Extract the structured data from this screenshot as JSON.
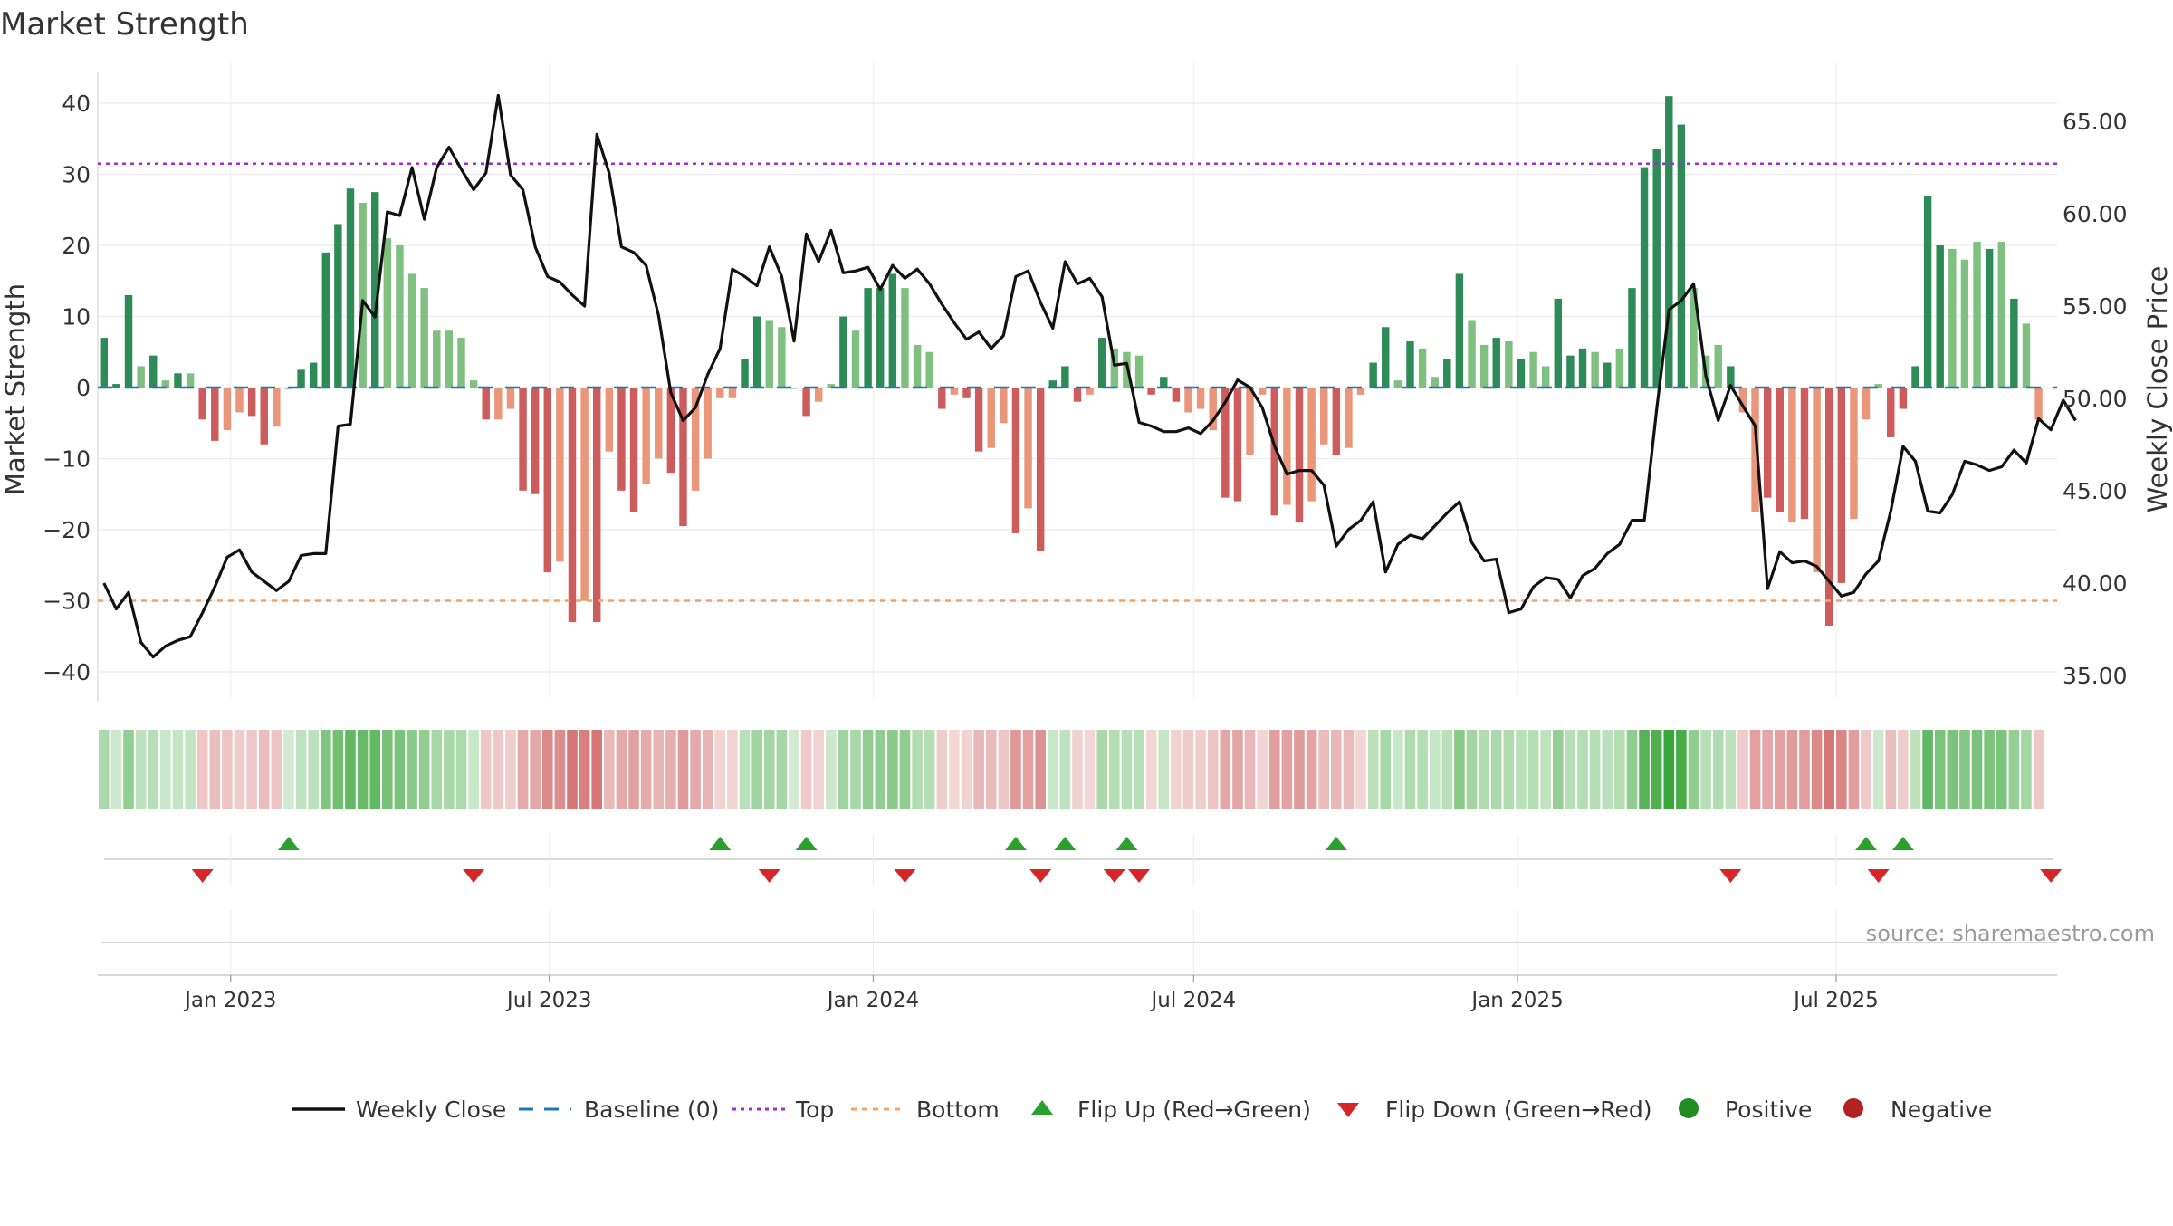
{
  "title": "Market Strength",
  "source": "source: sharemaestro.com",
  "chart_data": {
    "type": "bar",
    "title": "Market Strength",
    "ylabel": "Market Strength",
    "y2label": "Weekly Close Price",
    "ylim": [
      -45,
      42
    ],
    "y2lim": [
      33.5,
      66.5
    ],
    "yticks": [
      -40,
      -30,
      -20,
      -10,
      0,
      10,
      20,
      30,
      40
    ],
    "yticklabels": [
      "−40",
      "−30",
      "−20",
      "−10",
      "0",
      "10",
      "20",
      "30",
      "40"
    ],
    "y2ticks": [
      35,
      40,
      45,
      50,
      55,
      60,
      65
    ],
    "y2ticklabels": [
      "35.00",
      "40.00",
      "45.00",
      "50.00",
      "55.00",
      "60.00",
      "65.00"
    ],
    "xticks": [
      {
        "date": "2023-01-01",
        "label": "Jan 2023"
      },
      {
        "date": "2023-07-01",
        "label": "Jul 2023"
      },
      {
        "date": "2024-01-01",
        "label": "Jan 2024"
      },
      {
        "date": "2024-07-01",
        "label": "Jul 2024"
      },
      {
        "date": "2025-01-01",
        "label": "Jan 2025"
      },
      {
        "date": "2025-07-01",
        "label": "Jul 2025"
      }
    ],
    "x_start": "2022-10-21",
    "weeks": 159,
    "top_line": 31.5,
    "bottom_line": -30,
    "grid": true,
    "legend_position": "bottom",
    "colors": {
      "strong_green": "#2e8b57",
      "light_green": "#7fbf7f",
      "strong_red": "#cd5c5c",
      "light_red": "#e9967a",
      "price_line": "#111111",
      "baseline": "#1f77b4",
      "top": "#9932cc",
      "bottom": "#f4a460",
      "flip_up": "#2ca02c",
      "flip_down": "#d62728",
      "positive": "#228b22",
      "negative": "#b22222"
    },
    "bars": [
      7,
      0.5,
      13,
      3,
      4.5,
      1,
      2,
      2,
      -4.5,
      -7.5,
      -6,
      -3.5,
      -4,
      -8,
      -5.5,
      0,
      2.5,
      3.5,
      19,
      23,
      28,
      26,
      27.5,
      21,
      20,
      16,
      14,
      8,
      8,
      7,
      1,
      -4.5,
      -4.5,
      -3,
      -14.5,
      -15,
      -26,
      -24.5,
      -33,
      -30,
      -33,
      -9,
      -14.5,
      -17.5,
      -13.5,
      -10,
      -12,
      -19.5,
      -14.5,
      -10,
      -1.5,
      -1.5,
      4,
      10,
      9.5,
      8.5,
      0,
      -4,
      -2,
      0.5,
      10,
      8,
      14,
      14,
      16,
      14,
      6,
      5,
      -3,
      -1,
      -1.5,
      -9,
      -8.5,
      -5,
      -20.5,
      -17,
      -23,
      1,
      3,
      -2,
      -1,
      7,
      5.5,
      5,
      4.5,
      -1,
      1.5,
      -2,
      -3.5,
      -3,
      -6,
      -15.5,
      -16,
      -9.5,
      -1,
      -18,
      -16.5,
      -19,
      -16,
      -8,
      -9.5,
      -8.5,
      -1,
      3.5,
      8.5,
      1,
      6.5,
      5.5,
      1.5,
      4,
      16,
      9.5,
      6,
      7,
      6.5,
      4,
      5,
      3,
      12.5,
      4.5,
      5.5,
      5,
      3.5,
      5.5,
      14,
      31,
      33.5,
      41,
      37,
      14,
      4.5,
      6,
      3,
      -3.5,
      -17.5,
      -15.5,
      -17.5,
      -19,
      -18.5,
      -26,
      -33.5,
      -27.5,
      -18.5,
      -4.5,
      0.5,
      -7,
      -3,
      3,
      27,
      20,
      19.5,
      18,
      20.5,
      19.5,
      20.5,
      12.5,
      9,
      -4.5
    ],
    "bar_strength": [
      "s",
      "s",
      "s",
      "l",
      "s",
      "l",
      "s",
      "l",
      "s",
      "s",
      "l",
      "l",
      "s",
      "s",
      "l",
      "s",
      "s",
      "s",
      "s",
      "s",
      "s",
      "l",
      "s",
      "l",
      "l",
      "l",
      "l",
      "l",
      "l",
      "l",
      "l",
      "s",
      "l",
      "l",
      "s",
      "s",
      "s",
      "l",
      "s",
      "l",
      "s",
      "l",
      "s",
      "s",
      "l",
      "l",
      "s",
      "s",
      "l",
      "l",
      "l",
      "l",
      "s",
      "s",
      "l",
      "l",
      "l",
      "s",
      "l",
      "l",
      "s",
      "l",
      "s",
      "s",
      "s",
      "l",
      "l",
      "l",
      "s",
      "l",
      "s",
      "s",
      "l",
      "l",
      "s",
      "l",
      "s",
      "s",
      "s",
      "s",
      "l",
      "s",
      "l",
      "l",
      "l",
      "s",
      "s",
      "s",
      "l",
      "l",
      "l",
      "s",
      "s",
      "l",
      "l",
      "s",
      "l",
      "s",
      "l",
      "l",
      "s",
      "l",
      "l",
      "s",
      "s",
      "l",
      "s",
      "l",
      "l",
      "s",
      "s",
      "l",
      "l",
      "s",
      "l",
      "s",
      "l",
      "l",
      "s",
      "s",
      "s",
      "l",
      "s",
      "l",
      "s",
      "s",
      "s",
      "s",
      "s",
      "l",
      "l",
      "l",
      "s",
      "l",
      "l",
      "s",
      "s",
      "l",
      "s",
      "l",
      "s",
      "s",
      "l",
      "l",
      "l",
      "s",
      "s",
      "s",
      "s",
      "s",
      "l",
      "l",
      "l",
      "s",
      "l",
      "s",
      "l",
      "l",
      "s"
    ],
    "price": [
      40,
      38.6,
      39.5,
      36.8,
      36,
      36.6,
      36.9,
      37.1,
      38.4,
      39.8,
      41.4,
      41.8,
      40.6,
      40.1,
      39.6,
      40.1,
      41.5,
      41.6,
      41.6,
      48.5,
      48.6,
      55.3,
      54.4,
      60.1,
      59.9,
      62.5,
      59.7,
      62.5,
      63.6,
      62.4,
      61.3,
      62.2,
      66.4,
      62.1,
      61.3,
      58.2,
      56.6,
      56.3,
      55.6,
      55,
      64.3,
      62.2,
      58.2,
      57.9,
      57.2,
      54.5,
      50.3,
      48.8,
      49.5,
      51.3,
      52.7,
      57,
      56.6,
      56.1,
      58.2,
      56.6,
      53.1,
      58.9,
      57.4,
      59.1,
      56.8,
      56.9,
      57.1,
      55.9,
      57.2,
      56.5,
      57,
      56.2,
      55.1,
      54.1,
      53.2,
      53.6,
      52.7,
      53.4,
      56.6,
      56.9,
      55.2,
      53.8,
      57.4,
      56.2,
      56.5,
      55.5,
      51.8,
      51.9,
      48.7,
      48.5,
      48.2,
      48.2,
      48.4,
      48.1,
      48.8,
      49.8,
      51,
      50.6,
      49.5,
      47.4,
      45.9,
      46.1,
      46.1,
      45.3,
      42,
      42.9,
      43.4,
      44.4,
      40.6,
      42.1,
      42.6,
      42.4,
      43.1,
      43.8,
      44.4,
      42.2,
      41.2,
      41.3,
      38.4,
      38.6,
      39.8,
      40.3,
      40.2,
      39.2,
      40.4,
      40.8,
      41.6,
      42.1,
      43.4,
      43.4,
      49.4,
      54.8,
      55.3,
      56.2,
      51.2,
      48.8,
      50.7,
      49.6,
      48.5,
      39.7,
      41.7,
      41.1,
      41.2,
      40.9,
      40.1,
      39.3,
      39.5,
      40.5,
      41.2,
      43.9,
      47.4,
      46.6,
      43.9,
      43.8,
      44.8,
      46.6,
      46.4,
      46.1,
      46.3,
      47.2,
      46.5,
      48.9,
      48.3,
      49.9,
      48.8
    ],
    "flip_up_weeks": [
      15,
      50,
      57,
      74,
      78,
      83,
      100,
      143,
      146
    ],
    "flip_down_weeks": [
      8,
      30,
      54,
      65,
      76,
      82,
      84,
      132,
      144,
      158
    ]
  },
  "legend": [
    {
      "key": "weekly_close",
      "label": "Weekly Close"
    },
    {
      "key": "baseline",
      "label": "Baseline (0)"
    },
    {
      "key": "top",
      "label": "Top"
    },
    {
      "key": "bottom",
      "label": "Bottom"
    },
    {
      "key": "flip_up",
      "label": "Flip Up (Red→Green)"
    },
    {
      "key": "flip_down",
      "label": "Flip Down (Green→Red)"
    },
    {
      "key": "positive",
      "label": "Positive"
    },
    {
      "key": "negative",
      "label": "Negative"
    }
  ]
}
